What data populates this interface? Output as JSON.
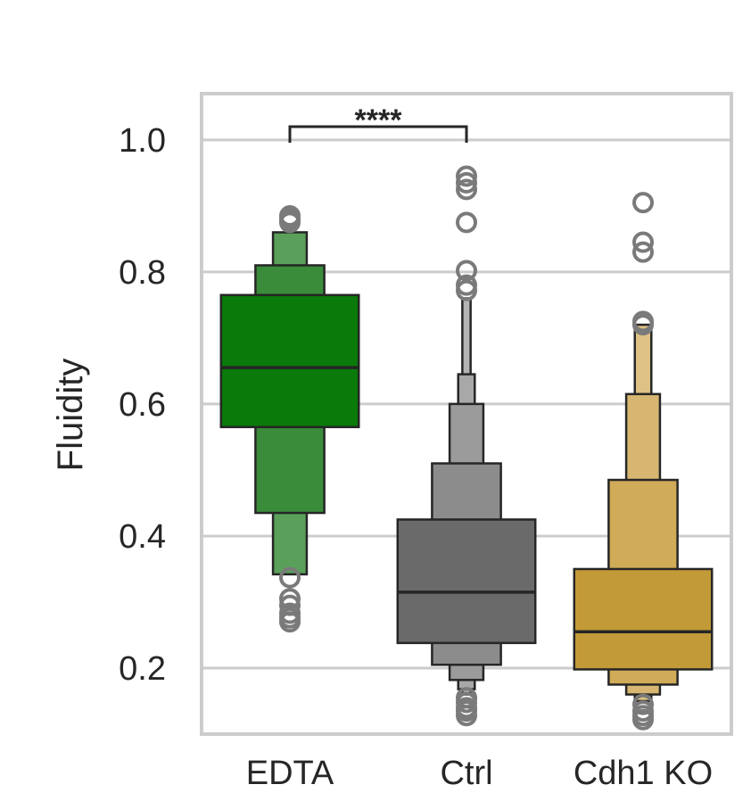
{
  "chart_data": {
    "type": "boxen",
    "title": "",
    "xlabel": "",
    "ylabel": "Fluidity",
    "ylim": [
      0.1,
      1.07
    ],
    "yticks": [
      0.2,
      0.4,
      0.6,
      0.8,
      1.0
    ],
    "ytick_labels": [
      "0.2",
      "0.4",
      "0.6",
      "0.8",
      "1.0"
    ],
    "grid": "horizontal",
    "categories": [
      "EDTA",
      "Ctrl",
      "Cdh1 KO"
    ],
    "series": [
      {
        "category": "EDTA",
        "color": "#007a00",
        "median": 0.655,
        "boxes": [
          {
            "low": 0.565,
            "high": 0.765,
            "rel_width": 1.0,
            "color": "#0a7a0a"
          },
          {
            "low": 0.435,
            "high": 0.81,
            "rel_width": 0.5,
            "color": "#3a8c3a"
          },
          {
            "low": 0.342,
            "high": 0.86,
            "rel_width": 0.245,
            "color": "#5aa05a"
          }
        ],
        "outliers": [
          0.337,
          0.305,
          0.295,
          0.283,
          0.276,
          0.27,
          0.875,
          0.88,
          0.885
        ]
      },
      {
        "category": "Ctrl",
        "color": "#666666",
        "median": 0.315,
        "boxes": [
          {
            "low": 0.238,
            "high": 0.425,
            "rel_width": 1.0,
            "color": "#6a6a6a"
          },
          {
            "low": 0.205,
            "high": 0.51,
            "rel_width": 0.5,
            "color": "#8c8c8c"
          },
          {
            "low": 0.182,
            "high": 0.6,
            "rel_width": 0.245,
            "color": "#9b9b9b"
          },
          {
            "low": 0.168,
            "high": 0.645,
            "rel_width": 0.12,
            "color": "#a8a8a8"
          },
          {
            "low": 0.16,
            "high": 0.76,
            "rel_width": 0.06,
            "color": "#b4b4b4"
          }
        ],
        "outliers": [
          0.945,
          0.935,
          0.925,
          0.875,
          0.802,
          0.78,
          0.772,
          0.155,
          0.148,
          0.14,
          0.135,
          0.128
        ]
      },
      {
        "category": "Cdh1 KO",
        "color": "#c89a30",
        "median": 0.255,
        "boxes": [
          {
            "low": 0.198,
            "high": 0.35,
            "rel_width": 1.0,
            "color": "#c39a38"
          },
          {
            "low": 0.175,
            "high": 0.485,
            "rel_width": 0.5,
            "color": "#d0ab58"
          },
          {
            "low": 0.16,
            "high": 0.615,
            "rel_width": 0.245,
            "color": "#d7b672"
          },
          {
            "low": 0.15,
            "high": 0.72,
            "rel_width": 0.12,
            "color": "#ddc185"
          }
        ],
        "outliers": [
          0.905,
          0.845,
          0.83,
          0.725,
          0.72,
          0.145,
          0.135,
          0.128,
          0.122
        ]
      }
    ],
    "significance": [
      {
        "from": "EDTA",
        "to": "Ctrl",
        "y": 1.02,
        "label": "****"
      }
    ],
    "colors": {
      "edge": "#262626",
      "outlier": "#7a7a7a",
      "grid": "#cccccc",
      "frame": "#cccccc"
    }
  }
}
